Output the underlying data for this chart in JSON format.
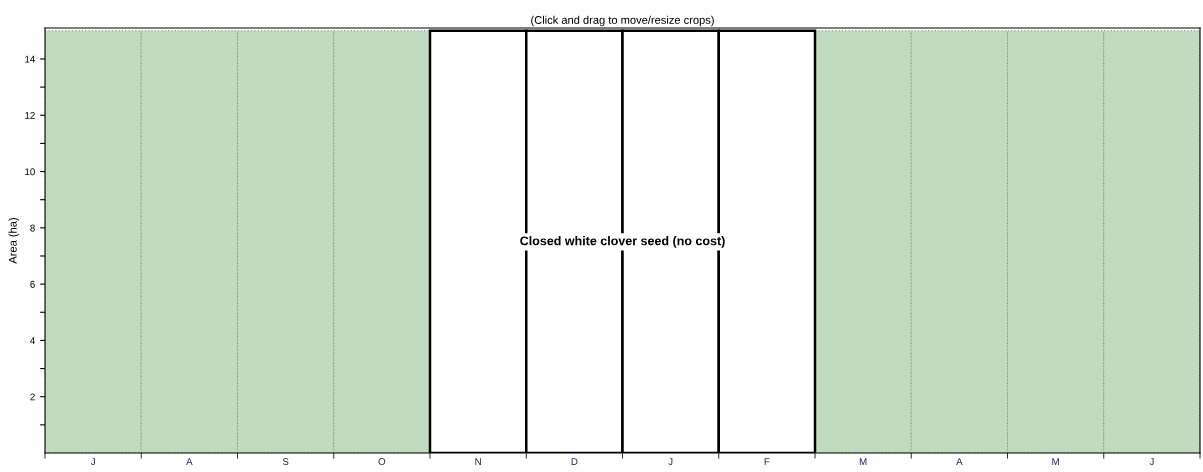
{
  "chart_data": {
    "type": "bar",
    "title": "(Click and drag to move/resize crops)",
    "ylabel": "Area (ha)",
    "categories": [
      "J",
      "A",
      "S",
      "O",
      "N",
      "D",
      "J",
      "F",
      "M",
      "A",
      "M",
      "J"
    ],
    "series": [
      {
        "color": "#c0dcc0",
        "values": [
          15,
          15,
          15,
          15,
          null,
          null,
          null,
          null,
          15,
          15,
          15,
          15
        ]
      },
      {
        "name": "Closed white clover seed (no cost)",
        "color": "#ffffff",
        "values": [
          null,
          null,
          null,
          null,
          15,
          15,
          15,
          15,
          null,
          null,
          null,
          null
        ]
      }
    ],
    "ylim": [
      0,
      15.1
    ],
    "yticks": [
      {
        "value": 1,
        "label": null
      },
      2,
      {
        "value": 3,
        "label": null
      },
      4,
      {
        "value": 5,
        "label": null
      },
      6,
      {
        "value": 7,
        "label": null
      },
      8,
      {
        "value": 9,
        "label": null
      },
      10,
      {
        "value": 11,
        "label": null
      },
      12,
      {
        "value": 13,
        "label": null
      },
      14
    ],
    "grid": false,
    "legend": false
  }
}
